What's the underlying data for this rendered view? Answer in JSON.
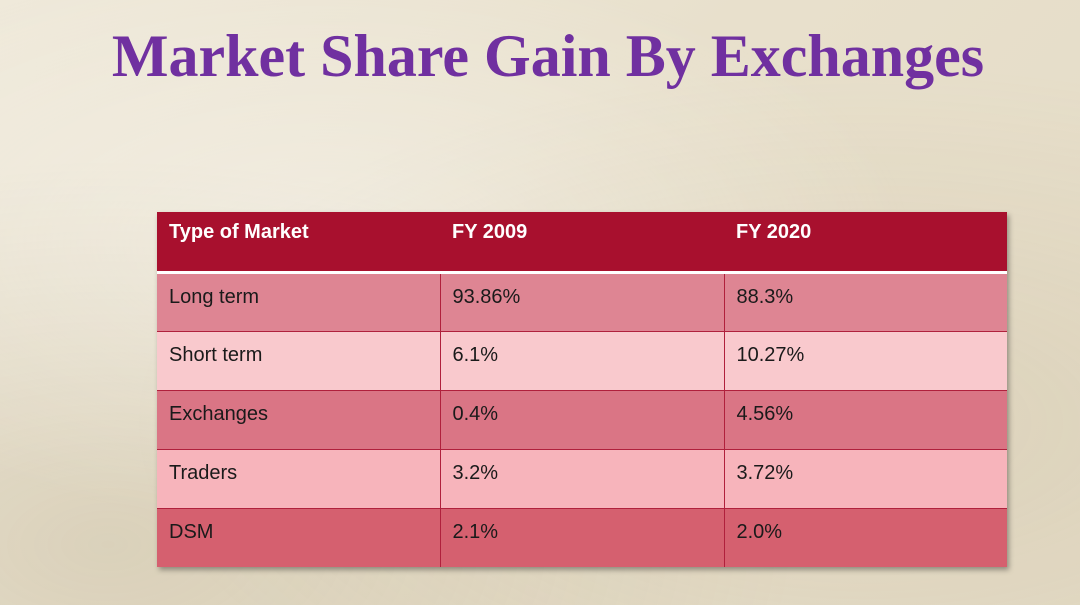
{
  "slide": {
    "title": "Market Share Gain By Exchanges"
  },
  "table": {
    "headers": [
      "Type of Market",
      "FY 2009",
      "FY 2020"
    ],
    "rows": [
      [
        "Long term",
        "93.86%",
        "88.3%"
      ],
      [
        "Short term",
        "6.1%",
        "10.27%"
      ],
      [
        "Exchanges",
        "0.4%",
        "4.56%"
      ],
      [
        "Traders",
        "3.2%",
        "3.72%"
      ],
      [
        "DSM",
        "2.1%",
        "2.0%"
      ]
    ]
  },
  "colors": {
    "title": "#7030a0",
    "header_bg": "#a8102e",
    "row_dark": "#de8593",
    "row_light": "#f9c9cd"
  }
}
